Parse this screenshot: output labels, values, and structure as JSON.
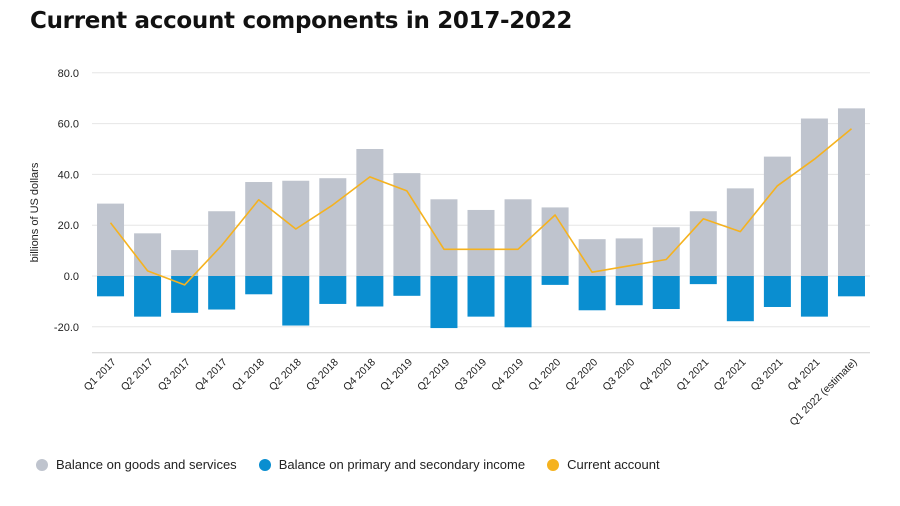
{
  "page": {
    "title": "Current account components in 2017-2022"
  },
  "chart_data": {
    "type": "bar",
    "title": "Current account components in 2017-2022",
    "xlabel": "",
    "ylabel": "billions of US dollars",
    "ylim": [
      -30,
      80
    ],
    "yticks": [
      -20.0,
      0.0,
      20.0,
      40.0,
      60.0,
      80.0
    ],
    "ytick_labels": [
      "-20.0",
      "0.0",
      "20.0",
      "40.0",
      "60.0",
      "80.0"
    ],
    "grid": true,
    "legend_position": "bottom-left",
    "categories": [
      "Q1 2017",
      "Q2 2017",
      "Q3 2017",
      "Q4 2017",
      "Q1 2018",
      "Q2 2018",
      "Q3 2018",
      "Q4 2018",
      "Q1 2019",
      "Q2 2019",
      "Q3 2019",
      "Q4 2019",
      "Q1 2020",
      "Q2 2020",
      "Q3 2020",
      "Q4 2020",
      "Q1 2021",
      "Q2 2021",
      "Q3 2021",
      "Q4 2021",
      "Q1 2022 (estimate)"
    ],
    "series": [
      {
        "name": "Balance on goods and services",
        "kind": "bar",
        "color": "#bfc4ce",
        "values": [
          28.5,
          16.8,
          10.2,
          25.5,
          37.0,
          37.5,
          38.5,
          50.0,
          40.5,
          30.2,
          26.0,
          30.2,
          27.0,
          14.5,
          14.8,
          19.2,
          25.5,
          34.5,
          47.0,
          62.0,
          66.0
        ]
      },
      {
        "name": "Balance on primary and secondary income",
        "kind": "bar",
        "color": "#0a8ed0",
        "values": [
          -8.0,
          -16.0,
          -14.5,
          -13.2,
          -7.2,
          -19.5,
          -11.0,
          -12.0,
          -7.8,
          -20.5,
          -16.0,
          -20.2,
          -3.5,
          -13.5,
          -11.5,
          -13.0,
          -3.2,
          -17.8,
          -12.2,
          -16.0,
          -8.0
        ]
      },
      {
        "name": "Current account",
        "kind": "line",
        "color": "#f5b21f",
        "values": [
          21.0,
          2.0,
          -3.5,
          12.0,
          30.0,
          18.5,
          28.0,
          39.0,
          33.5,
          10.5,
          10.5,
          10.5,
          24.0,
          1.5,
          4.0,
          6.5,
          22.5,
          17.5,
          35.5,
          46.0,
          58.0
        ]
      }
    ]
  }
}
